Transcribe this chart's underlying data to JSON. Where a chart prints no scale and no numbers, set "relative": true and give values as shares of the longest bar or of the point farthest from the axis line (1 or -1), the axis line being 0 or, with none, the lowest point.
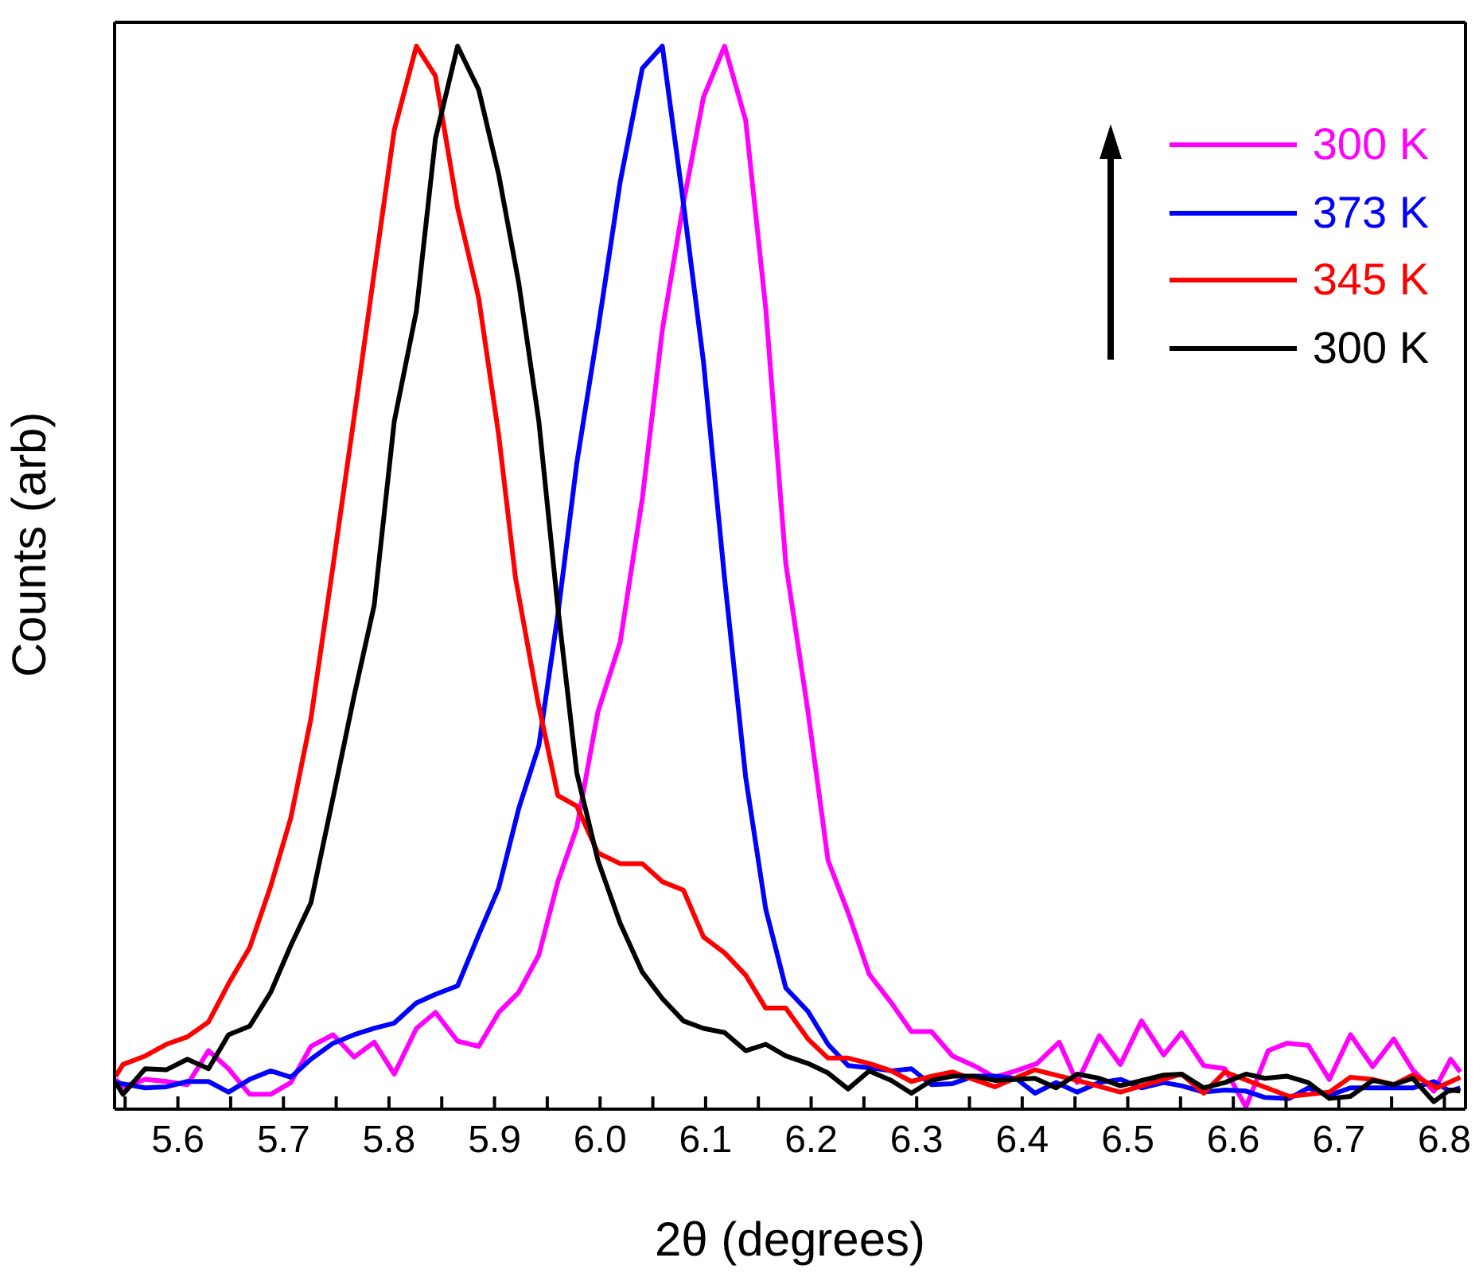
{
  "chart_data": {
    "type": "line",
    "xlabel": "2θ (degrees)",
    "ylabel": "Counts (arb)",
    "relative": true,
    "xlim": [
      5.54,
      6.82
    ],
    "xticks": [
      {
        "value": 5.55,
        "label": null
      },
      {
        "value": 5.6,
        "label": "5.6"
      },
      {
        "value": 5.65,
        "label": null
      },
      {
        "value": 5.7,
        "label": "5.7"
      },
      {
        "value": 5.75,
        "label": null
      },
      {
        "value": 5.8,
        "label": "5.8"
      },
      {
        "value": 5.85,
        "label": null
      },
      {
        "value": 5.9,
        "label": "5.9"
      },
      {
        "value": 5.95,
        "label": null
      },
      {
        "value": 6.0,
        "label": "6.0"
      },
      {
        "value": 6.05,
        "label": null
      },
      {
        "value": 6.1,
        "label": "6.1"
      },
      {
        "value": 6.15,
        "label": null
      },
      {
        "value": 6.2,
        "label": "6.2"
      },
      {
        "value": 6.25,
        "label": null
      },
      {
        "value": 6.3,
        "label": "6.3"
      },
      {
        "value": 6.35,
        "label": null
      },
      {
        "value": 6.4,
        "label": "6.4"
      },
      {
        "value": 6.45,
        "label": null
      },
      {
        "value": 6.5,
        "label": "6.5"
      },
      {
        "value": 6.55,
        "label": null
      },
      {
        "value": 6.6,
        "label": "6.6"
      },
      {
        "value": 6.65,
        "label": null
      },
      {
        "value": 6.7,
        "label": "6.7"
      },
      {
        "value": 6.75,
        "label": null
      },
      {
        "value": 6.8,
        "label": "6.8"
      }
    ],
    "legend": "top right",
    "series": [
      {
        "name": "300 K",
        "color": "#ff00ff",
        "x": [
          5.541,
          5.548,
          5.569,
          5.589,
          5.609,
          5.629,
          5.648,
          5.668,
          5.688,
          5.707,
          5.726,
          5.747,
          5.767,
          5.786,
          5.805,
          5.826,
          5.844,
          5.865,
          5.885,
          5.904,
          5.923,
          5.942,
          5.96,
          5.978,
          5.998,
          6.019,
          6.04,
          6.059,
          6.079,
          6.098,
          6.118,
          6.138,
          6.157,
          6.176,
          6.197,
          6.216,
          6.235,
          6.255,
          6.276,
          6.295,
          6.314,
          6.334,
          6.354,
          6.374,
          6.394,
          6.414,
          6.435,
          6.452,
          6.473,
          6.493,
          6.513,
          6.534,
          6.551,
          6.572,
          6.592,
          6.612,
          6.633,
          6.651,
          6.671,
          6.691,
          6.711,
          6.732,
          6.752,
          6.77,
          6.79,
          6.806,
          6.815
        ],
        "values": [
          0.028,
          0.021,
          0.028,
          0.026,
          0.023,
          0.055,
          0.038,
          0.014,
          0.014,
          0.025,
          0.059,
          0.07,
          0.049,
          0.063,
          0.033,
          0.076,
          0.091,
          0.064,
          0.059,
          0.091,
          0.11,
          0.145,
          0.214,
          0.265,
          0.374,
          0.439,
          0.574,
          0.733,
          0.852,
          0.952,
          1.0,
          0.93,
          0.753,
          0.513,
          0.374,
          0.234,
          0.185,
          0.127,
          0.1,
          0.073,
          0.073,
          0.05,
          0.041,
          0.03,
          0.036,
          0.043,
          0.063,
          0.025,
          0.069,
          0.042,
          0.083,
          0.051,
          0.072,
          0.041,
          0.038,
          0.002,
          0.055,
          0.062,
          0.06,
          0.028,
          0.07,
          0.04,
          0.066,
          0.037,
          0.017,
          0.047,
          0.035
        ]
      },
      {
        "name": "373 K",
        "color": "#0000ff",
        "x": [
          5.541,
          5.569,
          5.589,
          5.609,
          5.629,
          5.648,
          5.668,
          5.688,
          5.707,
          5.726,
          5.747,
          5.767,
          5.786,
          5.805,
          5.826,
          5.844,
          5.865,
          5.885,
          5.904,
          5.923,
          5.942,
          5.96,
          5.978,
          5.998,
          6.019,
          6.04,
          6.059,
          6.079,
          6.098,
          6.118,
          6.138,
          6.157,
          6.176,
          6.197,
          6.216,
          6.235,
          6.255,
          6.276,
          6.295,
          6.314,
          6.334,
          6.354,
          6.374,
          6.394,
          6.412,
          6.432,
          6.452,
          6.473,
          6.493,
          6.513,
          6.534,
          6.551,
          6.572,
          6.592,
          6.612,
          6.63,
          6.653,
          6.671,
          6.691,
          6.711,
          6.752,
          6.77,
          6.79,
          6.805,
          6.815
        ],
        "values": [
          0.025,
          0.02,
          0.021,
          0.026,
          0.026,
          0.016,
          0.028,
          0.036,
          0.03,
          0.047,
          0.062,
          0.07,
          0.076,
          0.081,
          0.1,
          0.108,
          0.116,
          0.164,
          0.208,
          0.283,
          0.342,
          0.465,
          0.608,
          0.733,
          0.872,
          0.979,
          1.0,
          0.852,
          0.703,
          0.499,
          0.312,
          0.188,
          0.114,
          0.092,
          0.061,
          0.041,
          0.039,
          0.036,
          0.038,
          0.023,
          0.024,
          0.031,
          0.031,
          0.029,
          0.015,
          0.025,
          0.016,
          0.025,
          0.028,
          0.02,
          0.025,
          0.022,
          0.016,
          0.018,
          0.017,
          0.011,
          0.01,
          0.02,
          0.013,
          0.02,
          0.02,
          0.02,
          0.026,
          0.017,
          0.02
        ]
      },
      {
        "name": "345 K",
        "color": "#ff0000",
        "x": [
          5.541,
          5.548,
          5.569,
          5.589,
          5.609,
          5.629,
          5.648,
          5.668,
          5.688,
          5.707,
          5.726,
          5.747,
          5.767,
          5.786,
          5.805,
          5.826,
          5.844,
          5.865,
          5.885,
          5.904,
          5.92,
          5.941,
          5.96,
          5.978,
          5.998,
          6.019,
          6.04,
          6.059,
          6.079,
          6.098,
          6.118,
          6.138,
          6.157,
          6.176,
          6.197,
          6.216,
          6.235,
          6.255,
          6.276,
          6.295,
          6.314,
          6.334,
          6.354,
          6.374,
          6.412,
          6.452,
          6.493,
          6.551,
          6.572,
          6.592,
          6.653,
          6.691,
          6.711,
          6.732,
          6.752,
          6.77,
          6.793,
          6.815
        ],
        "values": [
          0.031,
          0.042,
          0.05,
          0.061,
          0.068,
          0.082,
          0.118,
          0.152,
          0.21,
          0.274,
          0.367,
          0.511,
          0.651,
          0.787,
          0.921,
          1.0,
          0.972,
          0.848,
          0.763,
          0.634,
          0.499,
          0.384,
          0.295,
          0.285,
          0.241,
          0.231,
          0.231,
          0.214,
          0.206,
          0.162,
          0.147,
          0.126,
          0.095,
          0.095,
          0.066,
          0.048,
          0.048,
          0.043,
          0.036,
          0.026,
          0.031,
          0.035,
          0.028,
          0.021,
          0.037,
          0.027,
          0.016,
          0.033,
          0.015,
          0.035,
          0.012,
          0.016,
          0.03,
          0.028,
          0.023,
          0.032,
          0.02,
          0.03
        ]
      },
      {
        "name": "300 K",
        "color": "#000000",
        "x": [
          5.541,
          5.548,
          5.569,
          5.589,
          5.609,
          5.629,
          5.648,
          5.668,
          5.688,
          5.707,
          5.726,
          5.747,
          5.767,
          5.786,
          5.805,
          5.826,
          5.844,
          5.865,
          5.885,
          5.904,
          5.923,
          5.942,
          5.96,
          5.978,
          5.998,
          6.019,
          6.04,
          6.059,
          6.079,
          6.098,
          6.118,
          6.138,
          6.157,
          6.176,
          6.197,
          6.216,
          6.235,
          6.255,
          6.276,
          6.295,
          6.314,
          6.334,
          6.354,
          6.374,
          6.412,
          6.432,
          6.452,
          6.473,
          6.493,
          6.534,
          6.551,
          6.572,
          6.592,
          6.612,
          6.63,
          6.651,
          6.671,
          6.691,
          6.711,
          6.732,
          6.752,
          6.77,
          6.79,
          6.805,
          6.815
        ],
        "values": [
          0.025,
          0.014,
          0.038,
          0.037,
          0.047,
          0.038,
          0.07,
          0.078,
          0.11,
          0.154,
          0.194,
          0.293,
          0.389,
          0.474,
          0.647,
          0.751,
          0.913,
          1.0,
          0.959,
          0.879,
          0.777,
          0.647,
          0.472,
          0.316,
          0.234,
          0.175,
          0.129,
          0.104,
          0.083,
          0.076,
          0.072,
          0.055,
          0.061,
          0.05,
          0.043,
          0.034,
          0.019,
          0.036,
          0.027,
          0.015,
          0.027,
          0.031,
          0.031,
          0.027,
          0.029,
          0.02,
          0.033,
          0.029,
          0.022,
          0.032,
          0.033,
          0.02,
          0.025,
          0.033,
          0.029,
          0.031,
          0.025,
          0.01,
          0.012,
          0.027,
          0.023,
          0.029,
          0.007,
          0.018,
          0.017
        ]
      }
    ]
  }
}
